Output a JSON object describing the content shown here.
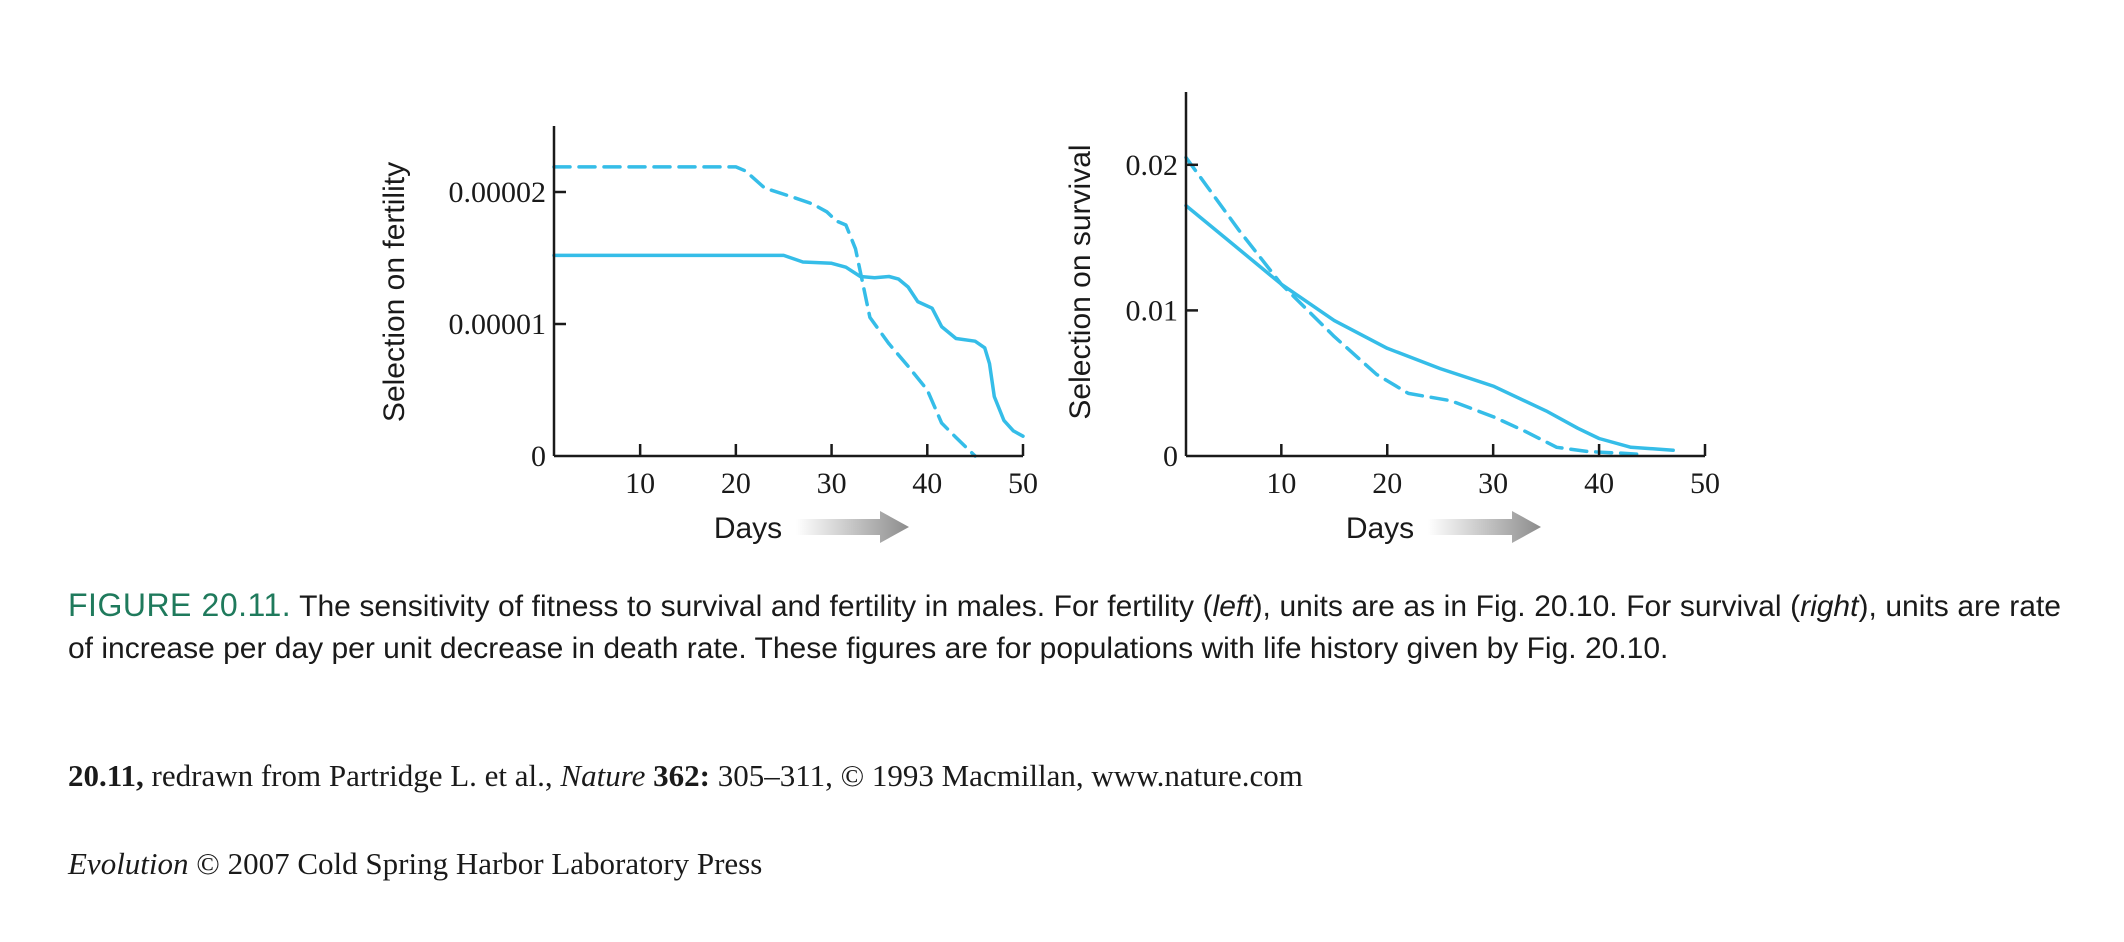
{
  "chart_data": [
    {
      "type": "line",
      "ylabel": "Selection on fertility",
      "xlabel": "Days",
      "xlim": [
        1,
        50
      ],
      "ylim": [
        0,
        2.5e-05
      ],
      "xticks": [
        "10",
        "20",
        "30",
        "40",
        "50"
      ],
      "xtick_values": [
        10,
        20,
        30,
        40,
        50
      ],
      "yticks": [
        "0",
        "0.00001",
        "0.00002"
      ],
      "ytick_values": [
        0,
        1e-05,
        2e-05
      ],
      "series": [
        {
          "style": "dashed",
          "color": "#35bde8",
          "points": [
            [
              1,
              2.19e-05
            ],
            [
              10,
              2.19e-05
            ],
            [
              20,
              2.19e-05
            ],
            [
              21,
              2.16e-05
            ],
            [
              23,
              2.03e-05
            ],
            [
              26,
              1.96e-05
            ],
            [
              28,
              1.91e-05
            ],
            [
              29.5,
              1.85e-05
            ],
            [
              30.5,
              1.78e-05
            ],
            [
              31.5,
              1.75e-05
            ],
            [
              32.5,
              1.57e-05
            ],
            [
              34,
              1.05e-05
            ],
            [
              36,
              8.5e-06
            ],
            [
              38,
              6.8e-06
            ],
            [
              40,
              5e-06
            ],
            [
              41.5,
              2.5e-06
            ],
            [
              43,
              1.4e-06
            ],
            [
              45,
              0
            ]
          ]
        },
        {
          "style": "solid",
          "color": "#35bde8",
          "points": [
            [
              1,
              1.52e-05
            ],
            [
              10,
              1.52e-05
            ],
            [
              20,
              1.52e-05
            ],
            [
              25,
              1.52e-05
            ],
            [
              27,
              1.47e-05
            ],
            [
              30,
              1.46e-05
            ],
            [
              31.5,
              1.43e-05
            ],
            [
              33,
              1.36e-05
            ],
            [
              34.5,
              1.35e-05
            ],
            [
              36,
              1.36e-05
            ],
            [
              37,
              1.34e-05
            ],
            [
              38,
              1.28e-05
            ],
            [
              39,
              1.17e-05
            ],
            [
              40.5,
              1.12e-05
            ],
            [
              41.5,
              9.8e-06
            ],
            [
              43,
              8.9e-06
            ],
            [
              45,
              8.7e-06
            ],
            [
              46,
              8.2e-06
            ],
            [
              46.5,
              7e-06
            ],
            [
              47,
              4.5e-06
            ],
            [
              48,
              2.7e-06
            ],
            [
              49,
              1.9e-06
            ],
            [
              50,
              1.5e-06
            ]
          ]
        }
      ]
    },
    {
      "type": "line",
      "ylabel": "Selection on survival",
      "xlabel": "Days",
      "xlim": [
        1,
        50
      ],
      "ylim": [
        0,
        0.025
      ],
      "xticks": [
        "10",
        "20",
        "30",
        "40",
        "50"
      ],
      "xtick_values": [
        10,
        20,
        30,
        40,
        50
      ],
      "yticks": [
        "0",
        "0.01",
        "0.02"
      ],
      "ytick_values": [
        0,
        0.01,
        0.02
      ],
      "series": [
        {
          "style": "dashed",
          "color": "#35bde8",
          "points": [
            [
              1,
              0.0205
            ],
            [
              3,
              0.0185
            ],
            [
              6,
              0.0155
            ],
            [
              10,
              0.0118
            ],
            [
              15,
              0.0082
            ],
            [
              19,
              0.0056
            ],
            [
              22,
              0.0043
            ],
            [
              26,
              0.0038
            ],
            [
              30,
              0.0027
            ],
            [
              33,
              0.0017
            ],
            [
              36,
              0.0006
            ],
            [
              39,
              0.0003
            ],
            [
              42,
              0.0002
            ],
            [
              44,
              0.0001
            ]
          ]
        },
        {
          "style": "solid",
          "color": "#35bde8",
          "points": [
            [
              1,
              0.0172
            ],
            [
              5,
              0.0148
            ],
            [
              10,
              0.0118
            ],
            [
              15,
              0.0093
            ],
            [
              20,
              0.0074
            ],
            [
              25,
              0.006
            ],
            [
              30,
              0.0048
            ],
            [
              35,
              0.0031
            ],
            [
              38,
              0.0019
            ],
            [
              40,
              0.0012
            ],
            [
              43,
              0.0006
            ],
            [
              47,
              0.0004
            ]
          ]
        }
      ]
    }
  ],
  "caption": {
    "label": "FIGURE 20.11.",
    "part1": "The sensitivity of fitness to survival and fertility in males. For fertility (",
    "left_word": "left",
    "part2": "), units are as in Fig. 20.10. For survival (",
    "right_word": "right",
    "part3": "), units are rate of increase per day per unit decrease in death rate. These figures are for populations with life history given by Fig. 20.10."
  },
  "credit": {
    "ref": "20.11,",
    "text1": " redrawn from Partridge L. et al., ",
    "journal": "Nature",
    "volume": " 362:",
    "text2": " 305–311, © 1993 Macmillan, www.nature.com"
  },
  "copyright": {
    "book": "Evolution",
    "text": " © 2007 Cold Spring Harbor Laboratory Press"
  }
}
